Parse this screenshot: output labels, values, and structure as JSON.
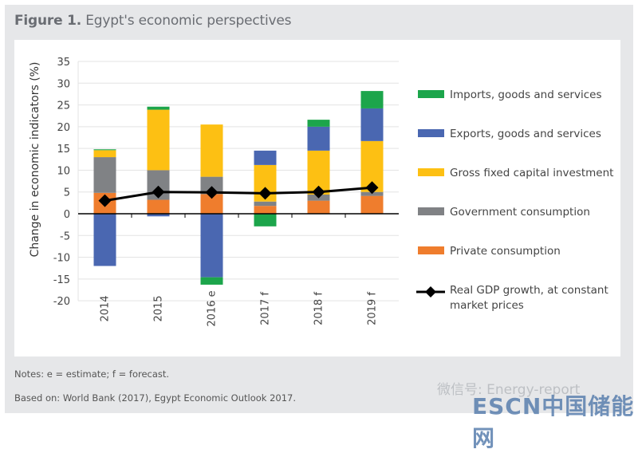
{
  "figure": {
    "label": "Figure 1.",
    "title": "Egypt's economic perspectives",
    "notes": "Notes: e = estimate; f = forecast.",
    "source": "Based on: World Bank (2017), Egypt Economic Outlook 2017."
  },
  "watermark": {
    "wechat": "微信号: Energy-report",
    "brand": "ESCN中国储能网"
  },
  "chart_data": {
    "type": "bar",
    "stacked": true,
    "title": "Egypt's economic perspectives",
    "xlabel": "",
    "ylabel": "Change in economic indicators (%)",
    "ylim": [
      -20,
      35
    ],
    "yticks": [
      35,
      30,
      25,
      20,
      15,
      10,
      5,
      0,
      -5,
      -10,
      -15,
      -20
    ],
    "grid": true,
    "legend_position": "right",
    "categories": [
      "2014",
      "2015",
      "2016 e",
      "2017 f",
      "2018 f",
      "2019 f"
    ],
    "series": [
      {
        "name": "Private consumption",
        "color": "#ef7d2d",
        "values": [
          4.8,
          3.2,
          4.5,
          1.8,
          3.0,
          4.1
        ]
      },
      {
        "name": "Government consumption",
        "color": "#808285",
        "values": [
          8.2,
          6.8,
          4.0,
          1.0,
          1.4,
          0.9
        ]
      },
      {
        "name": "Gross fixed capital investment",
        "color": "#fdc013",
        "values": [
          1.6,
          13.9,
          12.0,
          8.4,
          10.1,
          11.7
        ]
      },
      {
        "name": "Exports, goods and services",
        "color": "#4a67b1",
        "values": [
          -12.0,
          -0.6,
          -14.6,
          3.3,
          5.5,
          7.5
        ]
      },
      {
        "name": "Imports, goods and services",
        "color": "#1ca54b",
        "values": [
          0.2,
          0.7,
          -1.7,
          -2.9,
          1.6,
          4.0
        ]
      }
    ],
    "line_series": {
      "name": "Real GDP growth, at constant market prices",
      "color": "#000000",
      "values": [
        3.0,
        5.0,
        4.9,
        4.7,
        5.0,
        6.0
      ]
    },
    "legend": [
      {
        "name": "Imports, goods and services",
        "color": "#1ca54b",
        "kind": "box"
      },
      {
        "name": "Exports, goods and services",
        "color": "#4a67b1",
        "kind": "box"
      },
      {
        "name": "Gross fixed capital investment",
        "color": "#fdc013",
        "kind": "box"
      },
      {
        "name": "Government consumption",
        "color": "#808285",
        "kind": "box"
      },
      {
        "name": "Private consumption",
        "color": "#ef7d2d",
        "kind": "box"
      },
      {
        "name": "Real GDP growth, at constant",
        "name2": "market prices",
        "color": "#000000",
        "kind": "line"
      }
    ]
  }
}
